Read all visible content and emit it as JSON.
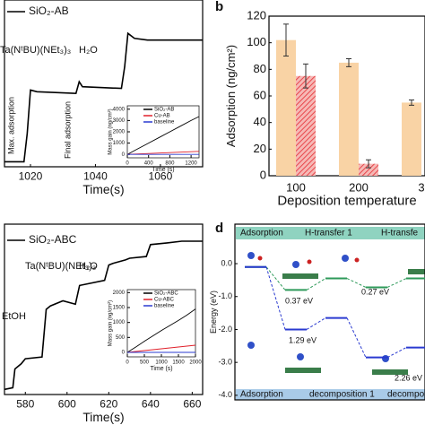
{
  "chart_data": [
    {
      "type": "line",
      "xlabel": "Time(s)",
      "xlim": [
        1012,
        1073
      ],
      "xticks": [
        1020,
        1040,
        1060
      ],
      "ylim": [
        0,
        100
      ],
      "x": [
        1012,
        1018,
        1019,
        1020,
        1022,
        1034,
        1035,
        1036,
        1048,
        1049,
        1050,
        1052,
        1056,
        1073
      ],
      "series": [
        {
          "name": "SiO₂-AB",
          "color": "#000000",
          "values": [
            3,
            3,
            20,
            46,
            45,
            44,
            51,
            48,
            47,
            60,
            80,
            77,
            76,
            76
          ]
        }
      ],
      "annotations": [
        "Ta(NᵗBU)(NEt₃)₃",
        "H₂O",
        "Max. adsorption",
        "Final adsorption"
      ]
    },
    {
      "type": "line",
      "xlabel": "Time (s)",
      "ylabel": "Mass gain (ng/cm²)",
      "xlim": [
        0,
        1350
      ],
      "xticks": [
        0,
        400,
        800,
        1200
      ],
      "ylim": [
        -300,
        4300
      ],
      "yticks": [
        0,
        1000,
        2000,
        3000,
        4000
      ],
      "x": [
        0,
        200,
        400,
        600,
        800,
        1000,
        1200,
        1350
      ],
      "series": [
        {
          "name": "SiO₂-AB",
          "color": "#000000",
          "values": [
            0,
            500,
            1000,
            1500,
            2000,
            2500,
            3000,
            3350
          ]
        },
        {
          "name": "Cu-AB",
          "color": "#e0202a",
          "values": [
            0,
            40,
            80,
            120,
            160,
            200,
            240,
            270
          ]
        },
        {
          "name": "baseline",
          "color": "#2a3ad0",
          "values": [
            0,
            0,
            0,
            0,
            0,
            0,
            0,
            0
          ]
        }
      ]
    },
    {
      "type": "bar",
      "label": "b",
      "xlabel": "Deposition temperature",
      "ylabel": "Adsorption (ng/cm²)",
      "categories": [
        "100",
        "200",
        "3"
      ],
      "ylim": [
        0,
        120
      ],
      "yticks": [
        0,
        20,
        40,
        60,
        80,
        100,
        120
      ],
      "series": [
        {
          "color": "#f9d3a5",
          "values": [
            102,
            85,
            55
          ],
          "errors": [
            12,
            3,
            2
          ]
        },
        {
          "color": "#e8474c",
          "values": [
            75,
            9,
            null
          ],
          "errors": [
            9,
            3,
            null
          ]
        }
      ]
    },
    {
      "type": "line",
      "xlabel": "Time(s)",
      "xlim": [
        570,
        665
      ],
      "xticks": [
        580,
        600,
        620,
        640,
        660
      ],
      "ylim": [
        0,
        100
      ],
      "x": [
        570,
        574,
        575,
        578,
        580,
        588,
        590,
        592,
        598,
        604,
        606,
        618,
        620,
        622,
        628,
        630,
        638,
        640,
        648,
        655,
        665
      ],
      "series": [
        {
          "name": "SiO₂-ABC",
          "color": "#000000",
          "values": [
            3,
            4,
            15,
            18,
            21,
            22,
            50,
            52,
            55,
            53,
            64,
            67,
            76,
            77,
            79,
            80,
            81,
            88,
            89,
            90,
            90
          ]
        }
      ],
      "annotations": [
        "Ta(NᵗBU)(NEt₃)₃",
        "H₂O",
        "EtOH"
      ]
    },
    {
      "type": "line",
      "xlabel": "Time (s)",
      "ylabel": "Mass gain (ng/cm²)",
      "xlim": [
        0,
        2000
      ],
      "xticks": [
        0,
        500,
        1000,
        1500,
        2000
      ],
      "ylim": [
        -150,
        2100
      ],
      "yticks": [
        0,
        500,
        1000,
        1500,
        2000
      ],
      "x": [
        0,
        250,
        500,
        750,
        1000,
        1250,
        1500,
        1750,
        2000
      ],
      "series": [
        {
          "name": "SiO₂-ABC",
          "color": "#000000",
          "values": [
            0,
            180,
            370,
            550,
            730,
            900,
            1070,
            1250,
            1450
          ]
        },
        {
          "name": "Cu-ABC",
          "color": "#e0202a",
          "values": [
            0,
            30,
            60,
            90,
            120,
            150,
            180,
            210,
            240
          ]
        },
        {
          "name": "baseline",
          "color": "#2a3ad0",
          "values": [
            0,
            0,
            0,
            0,
            0,
            0,
            0,
            0,
            0
          ]
        }
      ]
    },
    {
      "type": "energy",
      "label": "d",
      "ylabel": "Energy (eV)",
      "ylim": [
        -4.14,
        1.2
      ],
      "yticks": [
        {
          "value": 0,
          "label": "0.0"
        },
        {
          "value": -1,
          "label": "-1.0"
        },
        {
          "value": -2,
          "label": "-2.0"
        },
        {
          "value": -3,
          "label": "-3.0"
        },
        {
          "value": -4,
          "label": "-4.0"
        }
      ],
      "series": [
        {
          "color": "#2e9a5a",
          "values": [
            -0.1,
            -0.8,
            -0.45,
            -0.72,
            -0.45
          ]
        },
        {
          "color": "#2a3ad0",
          "values": [
            -0.1,
            -2.0,
            -1.65,
            -2.85,
            -2.55
          ]
        }
      ],
      "annotations": [
        "Adsorption",
        "H-transfer 1",
        "H-transfe",
        "Adsorption",
        "decomposition 1",
        "decompos",
        "0.37 eV",
        "1.29 eV",
        "0.27 eV",
        "2.26 eV"
      ]
    }
  ]
}
